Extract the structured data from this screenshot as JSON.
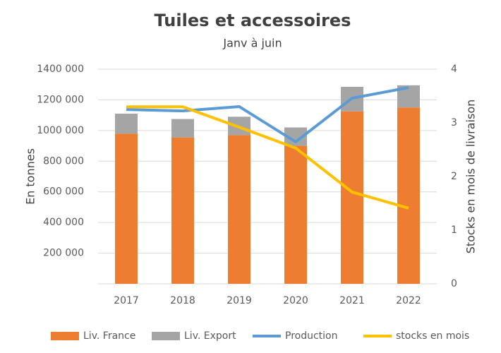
{
  "chart_data": {
    "type": "bar",
    "stacked": true,
    "title": "Tuiles et accessoires",
    "subtitle": "Janv à juin",
    "y_label": "En tonnes",
    "y2_label": "Stocks en mois  de livraison",
    "categories": [
      "2017",
      "2018",
      "2019",
      "2020",
      "2021",
      "2022"
    ],
    "series": [
      {
        "name": "Liv. France",
        "type": "bar",
        "color": "#ED7D31",
        "values": [
          980000,
          955000,
          970000,
          900000,
          1125000,
          1150000
        ]
      },
      {
        "name": "Liv. Export",
        "type": "bar",
        "color": "#A5A5A5",
        "values": [
          130000,
          120000,
          120000,
          120000,
          160000,
          145000
        ]
      },
      {
        "name": "Production",
        "type": "line",
        "color": "#5B9BD5",
        "values": [
          1137000,
          1128000,
          1156000,
          926000,
          1211000,
          1280000
        ]
      },
      {
        "name": "stocks en mois",
        "type": "line",
        "axis": "y2",
        "color": "#FFC000",
        "values": [
          3.3,
          3.3,
          2.92,
          2.53,
          1.71,
          1.41
        ]
      }
    ],
    "ylim": [
      0,
      1400000
    ],
    "yticks": [
      {
        "value": 200000,
        "label": "200 000"
      },
      {
        "value": 400000,
        "label": "400 000"
      },
      {
        "value": 600000,
        "label": "600 000"
      },
      {
        "value": 800000,
        "label": "800 000"
      },
      {
        "value": 1000000,
        "label": "1000 000"
      },
      {
        "value": 1200000,
        "label": "1200 000"
      },
      {
        "value": 1400000,
        "label": "1400 000"
      }
    ],
    "y2lim": [
      0,
      4
    ],
    "y2ticks": [
      0,
      1,
      2,
      3,
      4
    ],
    "grid": true,
    "legend": "bottom"
  }
}
